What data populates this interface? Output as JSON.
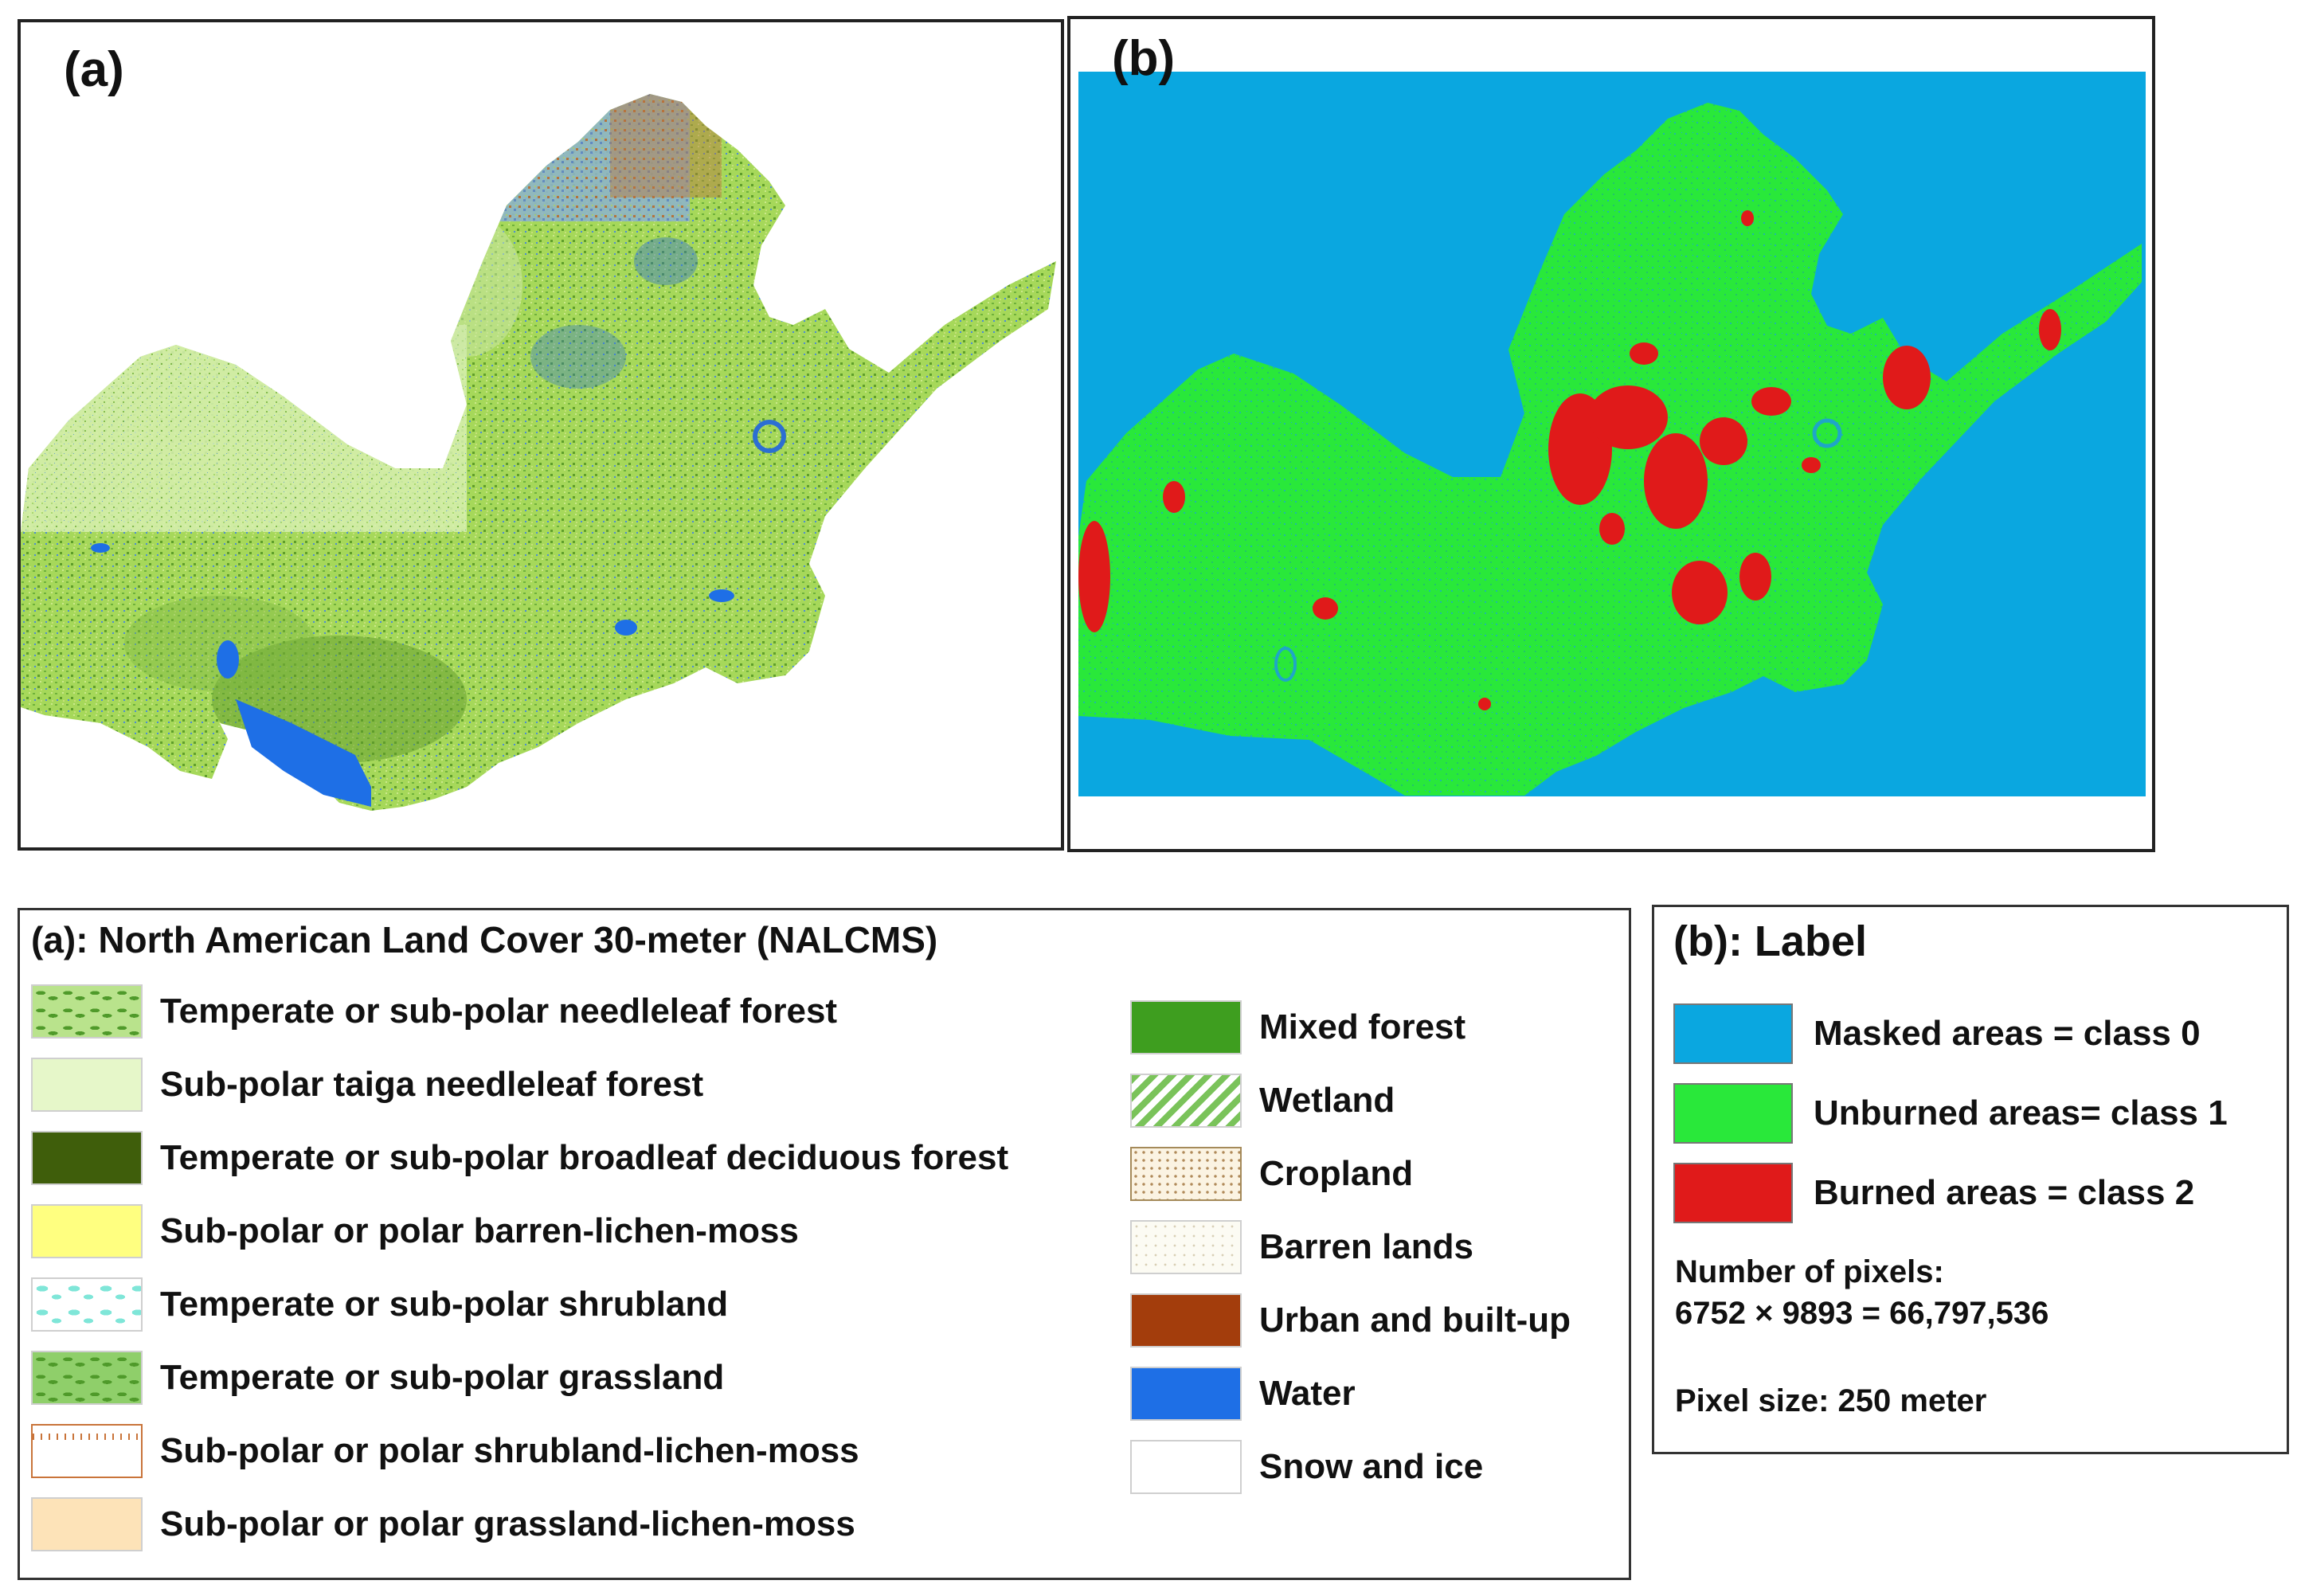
{
  "panels": {
    "a": {
      "letter": "(a)"
    },
    "b": {
      "letter": "(b)"
    }
  },
  "colors": {
    "needleleaf_green": "#8fd14f",
    "mixed_forest": "#3e9e1f",
    "taiga_light": "#d9f5b8",
    "water": "#1e6fe6",
    "urban": "#a33d0c",
    "masked": "#0aa7e0",
    "unburned": "#29e83a",
    "burned": "#e01a1a"
  },
  "legend_a": {
    "title": "(a): North American Land Cover 30-meter (NALCMS)",
    "items_left": [
      {
        "label": "Temperate or sub-polar needleleaf forest",
        "color": "#b9e38c",
        "pattern": "needle"
      },
      {
        "label": "Sub-polar taiga needleleaf forest",
        "color": "#e6f7c9",
        "pattern": "solid"
      },
      {
        "label": "Temperate or sub-polar broadleaf deciduous forest",
        "color": "#3f5e0b",
        "pattern": "solid"
      },
      {
        "label": "Sub-polar or polar barren-lichen-moss",
        "color": "#ffff80",
        "pattern": "solid"
      },
      {
        "label": "Temperate or sub-polar shrubland",
        "color": "#7fe6d8",
        "pattern": "blobs"
      },
      {
        "label": "Temperate or sub-polar grassland",
        "color": "#8fcf6a",
        "pattern": "needle"
      },
      {
        "label": "Sub-polar or polar shrubland-lichen-moss",
        "color": "#c9743a",
        "pattern": "brown"
      },
      {
        "label": "Sub-polar or polar grassland-lichen-moss",
        "color": "#fde3b8",
        "pattern": "solid"
      }
    ],
    "items_right": [
      {
        "label": "Mixed forest",
        "color": "#3e9e1f",
        "pattern": "solid"
      },
      {
        "label": "Wetland",
        "color": "#7ac35a",
        "pattern": "hatch"
      },
      {
        "label": "Cropland",
        "color": "#fbf3e2",
        "pattern": "dots"
      },
      {
        "label": "Barren lands",
        "color": "#fcfbf3",
        "pattern": "dotslight"
      },
      {
        "label": "Urban and built-up",
        "color": "#a33d0c",
        "pattern": "solid"
      },
      {
        "label": "Water",
        "color": "#1e6fe6",
        "pattern": "solid"
      },
      {
        "label": "Snow and ice",
        "color": "#ffffff",
        "pattern": "solid"
      }
    ]
  },
  "legend_b": {
    "title": "(b): Label",
    "items": [
      {
        "label": "Masked areas = class 0",
        "color": "#0aa7e0"
      },
      {
        "label": "Unburned areas= class 1",
        "color": "#29e83a"
      },
      {
        "label": "Burned areas = class 2",
        "color": "#e01a1a"
      }
    ],
    "pixels_heading": "Number of pixels:",
    "pixels_value": "6752 × 9893 = 66,797,536",
    "pixel_size": "Pixel size: 250 meter"
  }
}
